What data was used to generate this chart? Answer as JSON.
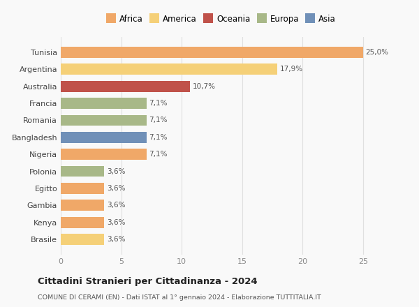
{
  "countries": [
    "Tunisia",
    "Argentina",
    "Australia",
    "Francia",
    "Romania",
    "Bangladesh",
    "Nigeria",
    "Polonia",
    "Egitto",
    "Gambia",
    "Kenya",
    "Brasile"
  ],
  "values": [
    25.0,
    17.9,
    10.7,
    7.1,
    7.1,
    7.1,
    7.1,
    3.6,
    3.6,
    3.6,
    3.6,
    3.6
  ],
  "labels": [
    "25,0%",
    "17,9%",
    "10,7%",
    "7,1%",
    "7,1%",
    "7,1%",
    "7,1%",
    "3,6%",
    "3,6%",
    "3,6%",
    "3,6%",
    "3,6%"
  ],
  "colors": [
    "#f0a868",
    "#f5d078",
    "#c0524a",
    "#a8b888",
    "#a8b888",
    "#7090b8",
    "#f0a868",
    "#a8b888",
    "#f0a868",
    "#f0a868",
    "#f0a868",
    "#f5d078"
  ],
  "legend_labels": [
    "Africa",
    "America",
    "Oceania",
    "Europa",
    "Asia"
  ],
  "legend_colors": [
    "#f0a868",
    "#f5d078",
    "#c0524a",
    "#a8b888",
    "#7090b8"
  ],
  "title": "Cittadini Stranieri per Cittadinanza - 2024",
  "subtitle": "COMUNE DI CERAMI (EN) - Dati ISTAT al 1° gennaio 2024 - Elaborazione TUTTITALIA.IT",
  "xlim": [
    0,
    26.5
  ],
  "xticks": [
    0,
    5,
    10,
    15,
    20,
    25
  ],
  "background_color": "#f9f9f9",
  "grid_color": "#e0e0e0"
}
